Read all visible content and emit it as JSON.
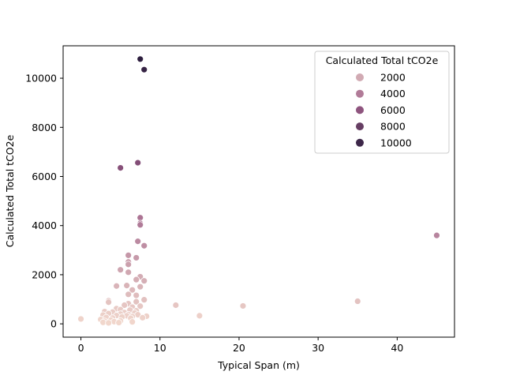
{
  "chart_data": {
    "type": "scatter",
    "title": "",
    "xlabel": "Typical Span (m)",
    "ylabel": "Calculated Total tCO2e",
    "xlim": [
      -2.25,
      47.25
    ],
    "ylim": [
      -542,
      11320
    ],
    "xticks": [
      "0",
      "10",
      "20",
      "30",
      "40"
    ],
    "yticks": [
      "0",
      "2000",
      "4000",
      "6000",
      "8000",
      "10000"
    ],
    "grid": false,
    "legend": {
      "title": "Calculated Total tCO2e",
      "placement": "top-right",
      "entries": [
        {
          "label": "2000",
          "value": 2000
        },
        {
          "label": "4000",
          "value": 4000
        },
        {
          "label": "6000",
          "value": 6000
        },
        {
          "label": "8000",
          "value": 8000
        },
        {
          "label": "10000",
          "value": 10000
        }
      ]
    },
    "hue_scale": {
      "min": 0,
      "max": 10800,
      "light": "#f2d8cd",
      "mid": "#9a5b86",
      "dark": "#2d1e3e"
    },
    "points": [
      {
        "x": 7.5,
        "y": 10780
      },
      {
        "x": 8.0,
        "y": 10350
      },
      {
        "x": 5.0,
        "y": 6350
      },
      {
        "x": 7.2,
        "y": 6560
      },
      {
        "x": 7.5,
        "y": 4320
      },
      {
        "x": 7.5,
        "y": 4090
      },
      {
        "x": 7.5,
        "y": 4030
      },
      {
        "x": 7.2,
        "y": 3360
      },
      {
        "x": 8.0,
        "y": 3180
      },
      {
        "x": 45.0,
        "y": 3600
      },
      {
        "x": 6.0,
        "y": 2790
      },
      {
        "x": 7.0,
        "y": 2690
      },
      {
        "x": 6.0,
        "y": 2520
      },
      {
        "x": 6.0,
        "y": 2420
      },
      {
        "x": 5.0,
        "y": 2200
      },
      {
        "x": 6.0,
        "y": 2100
      },
      {
        "x": 7.5,
        "y": 1920
      },
      {
        "x": 7.0,
        "y": 1800
      },
      {
        "x": 8.0,
        "y": 1750
      },
      {
        "x": 4.5,
        "y": 1540
      },
      {
        "x": 5.8,
        "y": 1560
      },
      {
        "x": 7.5,
        "y": 1510
      },
      {
        "x": 6.5,
        "y": 1380
      },
      {
        "x": 6.0,
        "y": 1200
      },
      {
        "x": 7.0,
        "y": 1160
      },
      {
        "x": 8.0,
        "y": 980
      },
      {
        "x": 3.5,
        "y": 940
      },
      {
        "x": 3.5,
        "y": 880
      },
      {
        "x": 7.0,
        "y": 900
      },
      {
        "x": 6.0,
        "y": 820
      },
      {
        "x": 5.5,
        "y": 760
      },
      {
        "x": 12.0,
        "y": 760
      },
      {
        "x": 20.5,
        "y": 730
      },
      {
        "x": 35.0,
        "y": 920
      },
      {
        "x": 7.5,
        "y": 720
      },
      {
        "x": 6.5,
        "y": 680
      },
      {
        "x": 4.5,
        "y": 620
      },
      {
        "x": 5.0,
        "y": 580
      },
      {
        "x": 6.2,
        "y": 560
      },
      {
        "x": 7.0,
        "y": 530
      },
      {
        "x": 3.0,
        "y": 500
      },
      {
        "x": 4.0,
        "y": 480
      },
      {
        "x": 5.5,
        "y": 460
      },
      {
        "x": 6.8,
        "y": 440
      },
      {
        "x": 3.5,
        "y": 420
      },
      {
        "x": 5.0,
        "y": 400
      },
      {
        "x": 6.0,
        "y": 380
      },
      {
        "x": 7.2,
        "y": 370
      },
      {
        "x": 2.8,
        "y": 360
      },
      {
        "x": 4.5,
        "y": 340
      },
      {
        "x": 5.8,
        "y": 330
      },
      {
        "x": 8.3,
        "y": 310
      },
      {
        "x": 15.0,
        "y": 330
      },
      {
        "x": 6.5,
        "y": 300
      },
      {
        "x": 5.2,
        "y": 280
      },
      {
        "x": 3.2,
        "y": 260
      },
      {
        "x": 4.0,
        "y": 240
      },
      {
        "x": 7.8,
        "y": 250
      },
      {
        "x": 6.3,
        "y": 230
      },
      {
        "x": 2.5,
        "y": 180
      },
      {
        "x": 3.8,
        "y": 150
      },
      {
        "x": 5.0,
        "y": 120
      },
      {
        "x": 0.0,
        "y": 200
      },
      {
        "x": 3.0,
        "y": 110
      },
      {
        "x": 4.2,
        "y": 90
      },
      {
        "x": 6.5,
        "y": 80
      },
      {
        "x": 2.8,
        "y": 60
      },
      {
        "x": 4.8,
        "y": 50
      },
      {
        "x": 3.5,
        "y": 40
      }
    ]
  }
}
